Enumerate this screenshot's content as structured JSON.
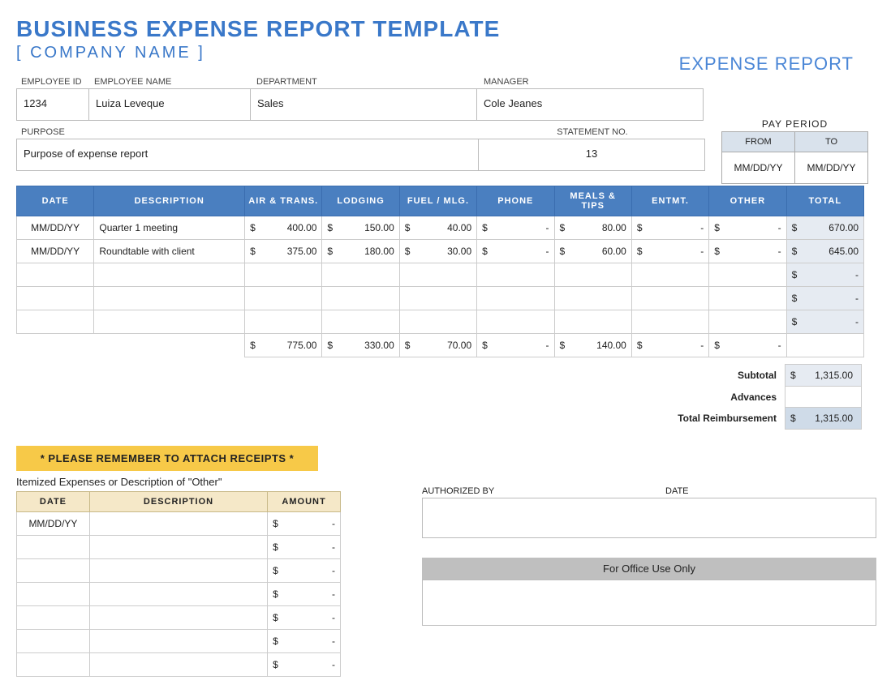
{
  "title": "BUSINESS EXPENSE REPORT TEMPLATE",
  "subtitle": "[ COMPANY NAME ]",
  "topright": "EXPENSE REPORT",
  "header": {
    "emp_id_label": "EMPLOYEE ID",
    "emp_id": "1234",
    "emp_name_label": "EMPLOYEE NAME",
    "emp_name": "Luiza Leveque",
    "dept_label": "DEPARTMENT",
    "dept": "Sales",
    "manager_label": "MANAGER",
    "manager": "Cole Jeanes",
    "purpose_label": "PURPOSE",
    "purpose": "Purpose of expense report",
    "stmt_label": "STATEMENT NO.",
    "stmt": "13"
  },
  "payperiod": {
    "title": "PAY PERIOD",
    "from_label": "FROM",
    "to_label": "TO",
    "from": "MM/DD/YY",
    "to": "MM/DD/YY"
  },
  "columns": {
    "date": "DATE",
    "desc": "DESCRIPTION",
    "air": "AIR & TRANS.",
    "lodging": "LODGING",
    "fuel": "FUEL / MLG.",
    "phone": "PHONE",
    "meals": "MEALS & TIPS",
    "ent": "ENTMT.",
    "other": "OTHER",
    "total": "TOTAL"
  },
  "rows": [
    {
      "date": "MM/DD/YY",
      "desc": "Quarter 1 meeting",
      "air": "400.00",
      "lodging": "150.00",
      "fuel": "40.00",
      "phone": "-",
      "meals": "80.00",
      "ent": "-",
      "other": "-",
      "total": "670.00"
    },
    {
      "date": "MM/DD/YY",
      "desc": "Roundtable with client",
      "air": "375.00",
      "lodging": "180.00",
      "fuel": "30.00",
      "phone": "-",
      "meals": "60.00",
      "ent": "-",
      "other": "-",
      "total": "645.00"
    },
    {
      "date": "",
      "desc": "",
      "air": "",
      "lodging": "",
      "fuel": "",
      "phone": "",
      "meals": "",
      "ent": "",
      "other": "",
      "total": "-"
    },
    {
      "date": "",
      "desc": "",
      "air": "",
      "lodging": "",
      "fuel": "",
      "phone": "",
      "meals": "",
      "ent": "",
      "other": "",
      "total": "-"
    },
    {
      "date": "",
      "desc": "",
      "air": "",
      "lodging": "",
      "fuel": "",
      "phone": "",
      "meals": "",
      "ent": "",
      "other": "",
      "total": "-"
    }
  ],
  "col_totals": {
    "air": "775.00",
    "lodging": "330.00",
    "fuel": "70.00",
    "phone": "-",
    "meals": "140.00",
    "ent": "-",
    "other": "-"
  },
  "summary": {
    "subtotal_label": "Subtotal",
    "subtotal": "1,315.00",
    "advances_label": "Advances",
    "advances": "",
    "reimb_label": "Total Reimbursement",
    "reimb": "1,315.00"
  },
  "remember": "* PLEASE REMEMBER TO ATTACH RECEIPTS *",
  "itemized_title": "Itemized Expenses or Description of \"Other\"",
  "itemized_cols": {
    "date": "DATE",
    "desc": "DESCRIPTION",
    "amount": "AMOUNT"
  },
  "itemized_rows": [
    {
      "date": "MM/DD/YY",
      "desc": "",
      "amount": "-"
    },
    {
      "date": "",
      "desc": "",
      "amount": "-"
    },
    {
      "date": "",
      "desc": "",
      "amount": "-"
    },
    {
      "date": "",
      "desc": "",
      "amount": "-"
    },
    {
      "date": "",
      "desc": "",
      "amount": "-"
    },
    {
      "date": "",
      "desc": "",
      "amount": "-"
    },
    {
      "date": "",
      "desc": "",
      "amount": "-"
    }
  ],
  "auth": {
    "by_label": "AUTHORIZED BY",
    "date_label": "DATE"
  },
  "office": {
    "title": "For Office Use Only"
  },
  "colors": {
    "primary_blue": "#4a7fc0",
    "light_blue": "#4a86d6",
    "shade": "#e6ebf2",
    "yellow": "#f7c948",
    "tan": "#f5e8c8",
    "gray": "#bfbfbf",
    "dark_gray": "#7f7f7f"
  }
}
